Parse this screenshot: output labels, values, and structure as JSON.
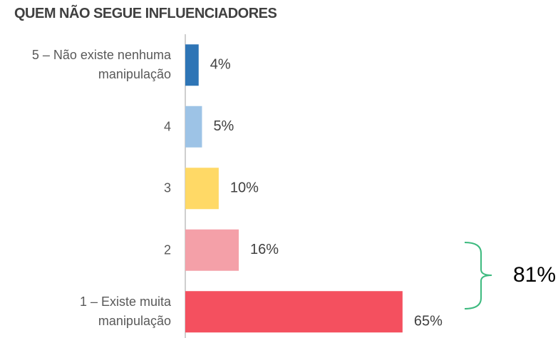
{
  "chart_data": {
    "type": "bar",
    "orientation": "horizontal",
    "title": "QUEM NÃO SEGUE INFLUENCIADORES",
    "categories": [
      "5 – Não existe nenhuma manipulação",
      "4",
      "3",
      "2",
      "1 – Existe muita manipulação"
    ],
    "values": [
      4,
      5,
      10,
      16,
      65
    ],
    "value_labels": [
      "4%",
      "5%",
      "10%",
      "16%",
      "65%"
    ],
    "colors": [
      "#2e75b6",
      "#9dc3e6",
      "#ffd966",
      "#f4a0a8",
      "#f4505f"
    ],
    "annotation": "81%"
  }
}
